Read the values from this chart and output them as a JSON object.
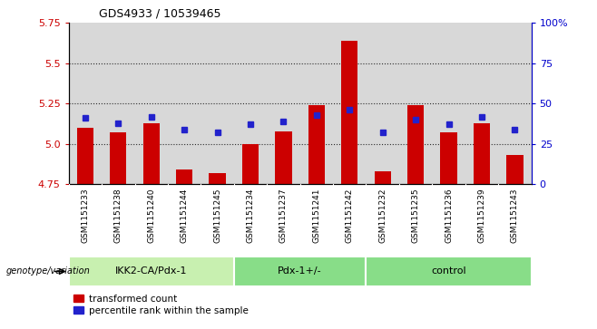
{
  "title": "GDS4933 / 10539465",
  "samples": [
    "GSM1151233",
    "GSM1151238",
    "GSM1151240",
    "GSM1151244",
    "GSM1151245",
    "GSM1151234",
    "GSM1151237",
    "GSM1151241",
    "GSM1151242",
    "GSM1151232",
    "GSM1151235",
    "GSM1151236",
    "GSM1151239",
    "GSM1151243"
  ],
  "red_values": [
    5.1,
    5.07,
    5.13,
    4.84,
    4.82,
    5.0,
    5.08,
    5.24,
    5.64,
    4.83,
    5.24,
    5.07,
    5.13,
    4.93
  ],
  "blue_values": [
    41,
    38,
    42,
    34,
    32,
    37,
    39,
    43,
    46,
    32,
    40,
    37,
    42,
    34
  ],
  "ymin": 4.75,
  "ymax": 5.75,
  "yticks": [
    4.75,
    5.0,
    5.25,
    5.5,
    5.75
  ],
  "right_yticks": [
    0,
    25,
    50,
    75,
    100
  ],
  "bar_color": "#cc0000",
  "dot_color": "#2222cc",
  "legend_label_red": "transformed count",
  "legend_label_blue": "percentile rank within the sample",
  "genotype_label": "genotype/variation",
  "bar_width": 0.5,
  "bg_color": "#d8d8d8",
  "group_configs": [
    {
      "label": "IKK2-CA/Pdx-1",
      "start": 0,
      "end": 5,
      "color": "#c8f0b0"
    },
    {
      "label": "Pdx-1+/-",
      "start": 5,
      "end": 9,
      "color": "#88dd88"
    },
    {
      "label": "control",
      "start": 9,
      "end": 14,
      "color": "#88dd88"
    }
  ]
}
